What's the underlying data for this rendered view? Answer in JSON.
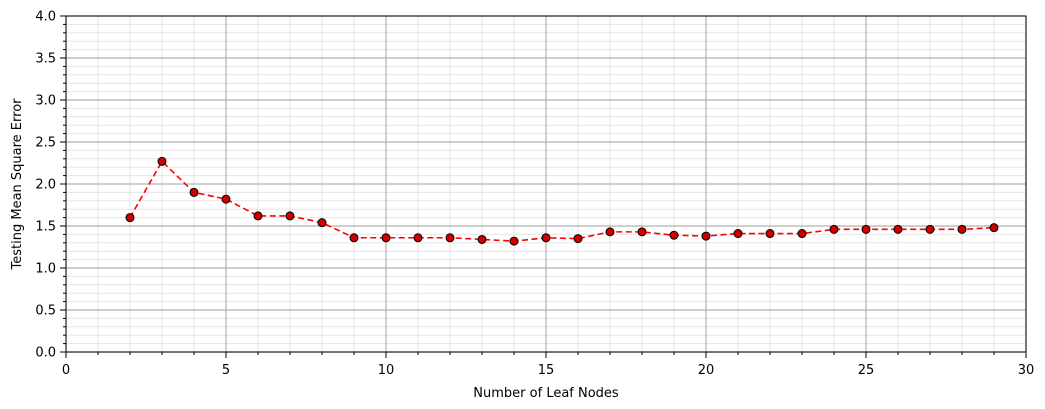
{
  "chart_data": {
    "type": "line",
    "title": "",
    "xlabel": "Number of Leaf Nodes",
    "ylabel": "Testing Mean Square Error",
    "xlim": [
      0,
      30
    ],
    "ylim": [
      0.0,
      4.0
    ],
    "grid": true,
    "x_ticks": [
      0,
      5,
      10,
      15,
      20,
      25,
      30
    ],
    "x_tick_labels": [
      "0",
      "5",
      "10",
      "15",
      "20",
      "25",
      "30"
    ],
    "y_ticks": [
      0.0,
      0.5,
      1.0,
      1.5,
      2.0,
      2.5,
      3.0,
      3.5,
      4.0
    ],
    "y_tick_labels": [
      "0.0",
      "0.5",
      "1.0",
      "1.5",
      "2.0",
      "2.5",
      "3.0",
      "3.5",
      "4.0"
    ],
    "series": [
      {
        "line_color": "#ff0000",
        "marker_color": "#cc0000",
        "marker_edge": "#000000",
        "line_style": "dashed",
        "x": [
          2,
          3,
          4,
          5,
          6,
          7,
          8,
          9,
          10,
          11,
          12,
          13,
          14,
          15,
          16,
          17,
          18,
          19,
          20,
          21,
          22,
          23,
          24,
          25,
          26,
          27,
          28,
          29
        ],
        "y": [
          1.6,
          2.27,
          1.9,
          1.82,
          1.62,
          1.62,
          1.54,
          1.36,
          1.36,
          1.36,
          1.36,
          1.34,
          1.32,
          1.36,
          1.35,
          1.43,
          1.43,
          1.39,
          1.38,
          1.41,
          1.41,
          1.41,
          1.46,
          1.46,
          1.46,
          1.46,
          1.46,
          1.48
        ]
      }
    ]
  }
}
